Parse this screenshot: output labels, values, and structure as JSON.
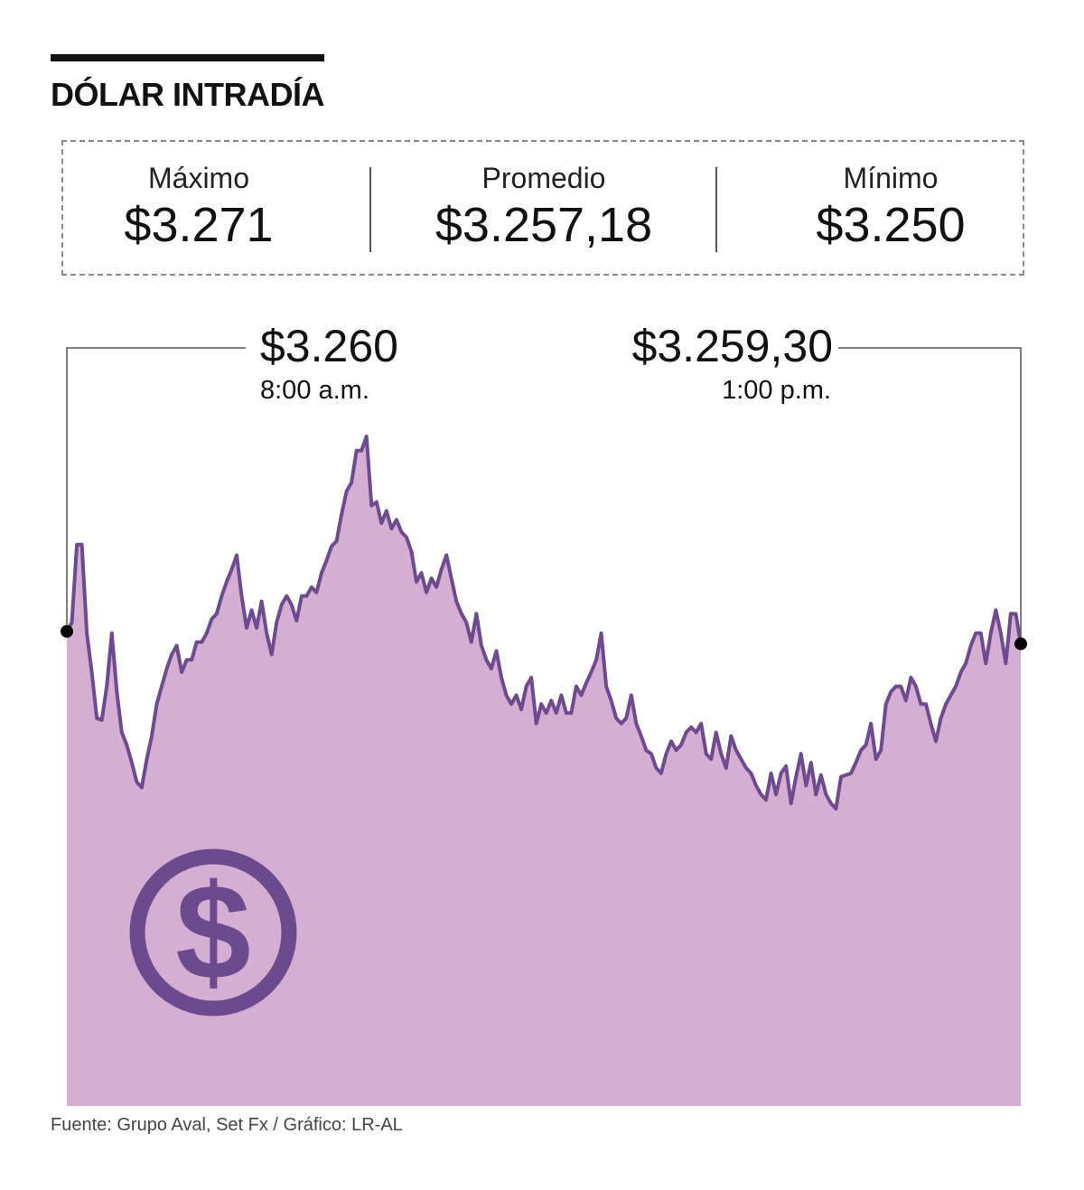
{
  "header": {
    "title": "DÓLAR INTRADÍA"
  },
  "stats": [
    {
      "label": "Máximo",
      "value": "$3.271"
    },
    {
      "label": "Promedio",
      "value": "$3.257,18"
    },
    {
      "label": "Mínimo",
      "value": "$3.250"
    }
  ],
  "annotations": {
    "open": {
      "value": "$3.260",
      "time": "8:00 a.m."
    },
    "close": {
      "value": "$3.259,30",
      "time": "1:00 p.m."
    }
  },
  "source": "Fuente: Grupo Aval, Set Fx / Gráfico: LR-AL",
  "icon": "dollar-coin-icon",
  "colors": {
    "line": "#6e4a8f",
    "fill": "#d5aed3",
    "icon": "#6b4a8d"
  },
  "chart_data": {
    "type": "area",
    "title": "DÓLAR INTRADÍA",
    "xlabel": "",
    "ylabel": "",
    "x_range": [
      "8:00 a.m.",
      "1:00 p.m."
    ],
    "ylim": [
      3250,
      3271
    ],
    "grid": false,
    "values": [
      3260,
      3260.5,
      3264.9,
      3264.9,
      3259.9,
      3257.7,
      3255.1,
      3255.0,
      3256.9,
      3259.9,
      3256.6,
      3254.3,
      3253.6,
      3252.6,
      3251.5,
      3251.2,
      3252.8,
      3254.1,
      3255.9,
      3256.9,
      3257.9,
      3258.7,
      3259.2,
      3257.7,
      3258.4,
      3258.4,
      3259.4,
      3259.4,
      3259.9,
      3260.7,
      3261.0,
      3262.0,
      3262.8,
      3263.5,
      3264.3,
      3262.0,
      3260.2,
      3261.2,
      3260.2,
      3261.7,
      3259.9,
      3258.7,
      3260.5,
      3261.5,
      3262.0,
      3261.5,
      3260.6,
      3262.0,
      3262.0,
      3262.5,
      3262.2,
      3263.3,
      3264.0,
      3264.8,
      3265.1,
      3266.6,
      3267.9,
      3268.4,
      3270.2,
      3270.2,
      3271.0,
      3267.1,
      3267.3,
      3266.1,
      3266.8,
      3265.8,
      3266.3,
      3265.6,
      3265.3,
      3264.5,
      3262.8,
      3263.3,
      3262.2,
      3263.0,
      3262.5,
      3263.5,
      3264.3,
      3263.0,
      3261.7,
      3261.0,
      3260.5,
      3259.4,
      3261.0,
      3259.2,
      3258.4,
      3257.9,
      3258.9,
      3257.4,
      3256.4,
      3255.9,
      3256.4,
      3255.6,
      3256.9,
      3257.4,
      3254.8,
      3255.9,
      3255.4,
      3256.1,
      3255.4,
      3256.4,
      3255.4,
      3255.4,
      3256.9,
      3256.4,
      3257.1,
      3257.7,
      3258.4,
      3259.9,
      3256.9,
      3256.1,
      3255.1,
      3254.8,
      3255.1,
      3256.4,
      3254.8,
      3254.1,
      3253.3,
      3253.1,
      3252.3,
      3252.0,
      3253.1,
      3253.8,
      3253.3,
      3253.6,
      3254.3,
      3254.6,
      3254.3,
      3254.8,
      3253.1,
      3252.8,
      3254.3,
      3253.1,
      3252.3,
      3254.1,
      3253.3,
      3252.8,
      3252.3,
      3252.0,
      3251.3,
      3250.8,
      3250.5,
      3252.0,
      3250.8,
      3252.0,
      3252.4,
      3250.3,
      3251.8,
      3253.1,
      3251.3,
      3252.6,
      3250.8,
      3251.9,
      3250.8,
      3250.3,
      3250.0,
      3251.8,
      3251.9,
      3252.0,
      3252.6,
      3253.3,
      3253.6,
      3254.8,
      3252.8,
      3253.3,
      3255.9,
      3256.6,
      3256.9,
      3256.9,
      3256.1,
      3257.4,
      3256.9,
      3255.9,
      3255.9,
      3254.8,
      3253.8,
      3255.1,
      3255.9,
      3256.4,
      3256.9,
      3257.7,
      3258.2,
      3259.2,
      3259.9,
      3259.9,
      3258.2,
      3259.9,
      3261.2,
      3259.9,
      3258.2,
      3261.0,
      3261.0,
      3259.3
    ]
  }
}
